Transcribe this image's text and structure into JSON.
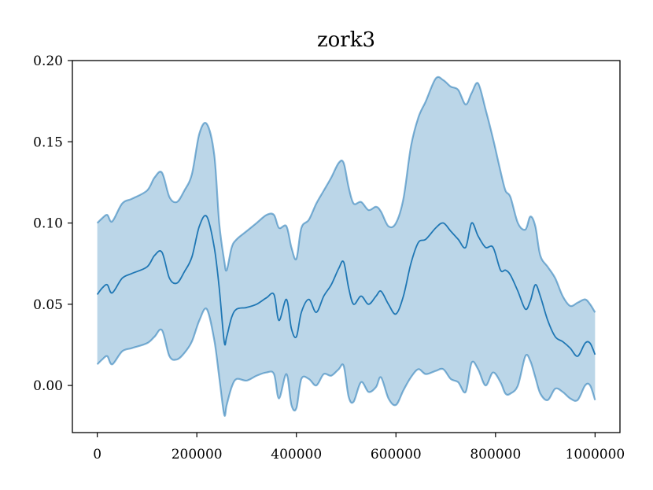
{
  "chart_data": {
    "type": "area",
    "title": "zork3",
    "xlabel": "",
    "ylabel": "",
    "xlim": [
      -50000,
      1050000
    ],
    "ylim": [
      -0.029,
      0.2
    ],
    "x_ticks": [
      0,
      200000,
      400000,
      600000,
      800000,
      1000000
    ],
    "x_tick_labels": [
      "0",
      "200000",
      "400000",
      "600000",
      "800000",
      "1000000"
    ],
    "y_ticks": [
      0.0,
      0.05,
      0.1,
      0.15,
      0.2
    ],
    "y_tick_labels": [
      "0.00",
      "0.05",
      "0.10",
      "0.15",
      "0.20"
    ],
    "grid": false,
    "colors": {
      "line": "#1f77b4",
      "band": "#1f77b4",
      "band_opacity": 0.3
    },
    "x": [
      0,
      10000,
      20000,
      30000,
      50000,
      70000,
      100000,
      115000,
      130000,
      145000,
      160000,
      175000,
      190000,
      205000,
      220000,
      235000,
      245000,
      255000,
      260000,
      270000,
      280000,
      300000,
      320000,
      340000,
      355000,
      365000,
      380000,
      390000,
      400000,
      410000,
      425000,
      440000,
      455000,
      470000,
      485000,
      495000,
      505000,
      515000,
      530000,
      545000,
      560000,
      570000,
      585000,
      600000,
      615000,
      630000,
      645000,
      660000,
      680000,
      695000,
      710000,
      725000,
      740000,
      752000,
      765000,
      780000,
      795000,
      810000,
      820000,
      830000,
      845000,
      860000,
      870000,
      880000,
      890000,
      905000,
      920000,
      935000,
      950000,
      965000,
      980000,
      990000,
      1000000
    ],
    "series": [
      {
        "values": [
          0.056,
          0.06,
          0.062,
          0.057,
          0.066,
          0.069,
          0.073,
          0.08,
          0.082,
          0.066,
          0.063,
          0.07,
          0.079,
          0.098,
          0.104,
          0.085,
          0.06,
          0.027,
          0.03,
          0.042,
          0.047,
          0.048,
          0.05,
          0.054,
          0.056,
          0.04,
          0.053,
          0.035,
          0.03,
          0.045,
          0.053,
          0.045,
          0.055,
          0.062,
          0.072,
          0.076,
          0.06,
          0.05,
          0.055,
          0.05,
          0.055,
          0.058,
          0.05,
          0.044,
          0.055,
          0.075,
          0.088,
          0.09,
          0.097,
          0.1,
          0.095,
          0.09,
          0.085,
          0.1,
          0.092,
          0.085,
          0.085,
          0.071,
          0.071,
          0.068,
          0.058,
          0.047,
          0.052,
          0.062,
          0.055,
          0.04,
          0.03,
          0.027,
          0.023,
          0.018,
          0.026,
          0.026,
          0.019
        ]
      }
    ],
    "band": {
      "upper": [
        0.1,
        0.103,
        0.105,
        0.101,
        0.112,
        0.115,
        0.12,
        0.128,
        0.131,
        0.116,
        0.113,
        0.12,
        0.13,
        0.155,
        0.161,
        0.142,
        0.1,
        0.077,
        0.071,
        0.085,
        0.09,
        0.095,
        0.1,
        0.105,
        0.105,
        0.097,
        0.098,
        0.085,
        0.078,
        0.097,
        0.102,
        0.112,
        0.12,
        0.128,
        0.137,
        0.137,
        0.122,
        0.112,
        0.113,
        0.108,
        0.11,
        0.107,
        0.098,
        0.1,
        0.115,
        0.147,
        0.165,
        0.175,
        0.189,
        0.188,
        0.184,
        0.182,
        0.173,
        0.18,
        0.186,
        0.17,
        0.152,
        0.132,
        0.12,
        0.116,
        0.1,
        0.096,
        0.104,
        0.098,
        0.08,
        0.073,
        0.066,
        0.055,
        0.049,
        0.051,
        0.053,
        0.05,
        0.045
      ],
      "lower": [
        0.013,
        0.016,
        0.018,
        0.013,
        0.021,
        0.023,
        0.026,
        0.03,
        0.034,
        0.018,
        0.016,
        0.02,
        0.027,
        0.04,
        0.047,
        0.028,
        0.005,
        -0.018,
        -0.012,
        -0.001,
        0.004,
        0.003,
        0.006,
        0.008,
        0.007,
        -0.008,
        0.007,
        -0.012,
        -0.014,
        0.004,
        0.004,
        0.0,
        0.007,
        0.006,
        0.01,
        0.012,
        -0.007,
        -0.01,
        0.002,
        -0.004,
        -0.001,
        0.005,
        -0.008,
        -0.012,
        -0.003,
        0.005,
        0.01,
        0.007,
        0.009,
        0.01,
        0.004,
        0.002,
        -0.004,
        0.014,
        0.01,
        0.0,
        0.008,
        0.002,
        -0.005,
        -0.005,
        0.0,
        0.018,
        0.015,
        0.005,
        -0.005,
        -0.009,
        -0.002,
        -0.004,
        -0.008,
        -0.009,
        0.0,
        0.0,
        -0.009
      ]
    }
  }
}
